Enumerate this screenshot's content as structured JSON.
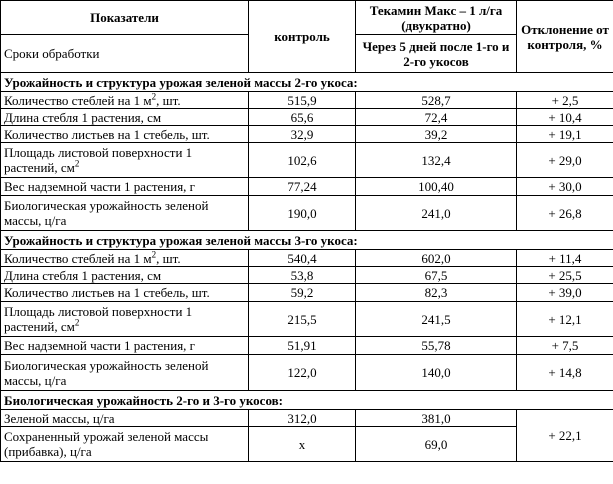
{
  "header": {
    "indicators": "Показатели",
    "periods": "Сроки обработки",
    "control": "контроль",
    "drug": "Текамин Макс – 1 л/га (двукратно)",
    "drug_sub": "Через 5 дней после 1-го и 2-го укосов",
    "deviation": "Отклонение от контроля, %"
  },
  "sections": [
    {
      "title": "Урожайность и структура урожая зеленой массы 2-го укоса:",
      "rows": [
        {
          "name": "Количество стеблей на 1 м",
          "sup": "2",
          "suffix": ", шт.",
          "control": "515,9",
          "value": "528,7",
          "dev": "+ 2,5"
        },
        {
          "name": "Длина стебля 1 растения, см",
          "control": "65,6",
          "value": "72,4",
          "dev": "+ 10,4"
        },
        {
          "name": "Количество листьев на 1 стебель, шт.",
          "control": "32,9",
          "value": "39,2",
          "dev": "+ 19,1"
        },
        {
          "name": "Площадь листовой поверхности 1 растений, см",
          "sup": "2",
          "suffix": "",
          "control": "102,6",
          "value": "132,4",
          "dev": "+ 29,0"
        },
        {
          "name": "Вес надземной части 1 растения, г",
          "control": "77,24",
          "value": "100,40",
          "dev": "+ 30,0"
        },
        {
          "name": "Биологическая урожайность зеленой массы, ц/га",
          "control": "190,0",
          "value": "241,0",
          "dev": "+ 26,8"
        }
      ]
    },
    {
      "title": "Урожайность и структура урожая зеленой массы 3-го укоса:",
      "rows": [
        {
          "name": "Количество стеблей на 1 м",
          "sup": "2",
          "suffix": ", шт.",
          "control": "540,4",
          "value": "602,0",
          "dev": "+ 11,4"
        },
        {
          "name": "Длина стебля 1 растения, см",
          "control": "53,8",
          "value": "67,5",
          "dev": "+ 25,5"
        },
        {
          "name": "Количество листьев на 1 стебель, шт.",
          "control": "59,2",
          "value": "82,3",
          "dev": "+ 39,0"
        },
        {
          "name": "Площадь листовой поверхности 1 растений, см",
          "sup": "2",
          "suffix": "",
          "control": "215,5",
          "value": "241,5",
          "dev": "+ 12,1"
        },
        {
          "name": "Вес надземной части 1 растения, г",
          "control": "51,91",
          "value": "55,78",
          "dev": "+ 7,5"
        },
        {
          "name": "Биологическая урожайность зеленой массы, ц/га",
          "control": "122,0",
          "value": "140,0",
          "dev": "+ 14,8"
        }
      ]
    },
    {
      "title": "Биологическая урожайность 2-го и 3-го укосов:",
      "rows": [
        {
          "name": "Зеленой массы, ц/га",
          "control": "312,0",
          "value": "381,0"
        },
        {
          "name": "Сохраненный урожай зеленой массы (прибавка), ц/га",
          "control": "х",
          "value": "69,0"
        }
      ],
      "merged_dev": "+ 22,1"
    }
  ]
}
